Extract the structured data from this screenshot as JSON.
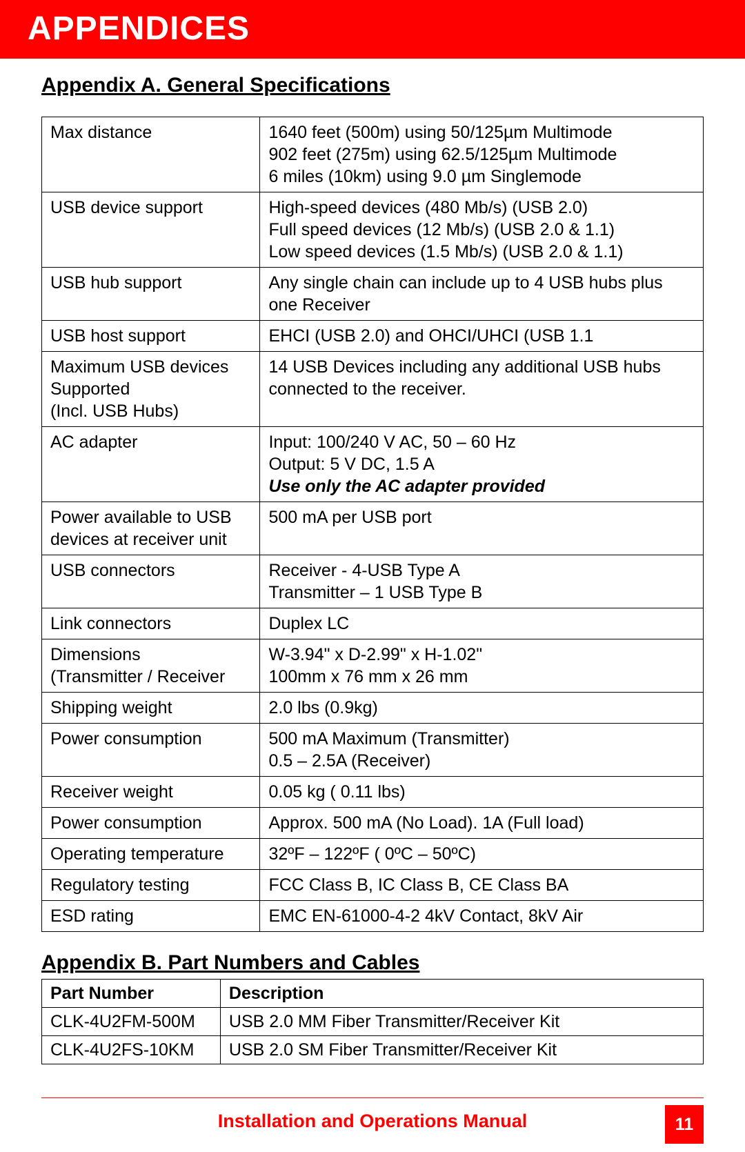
{
  "colors": {
    "brand_red": "#ff0000",
    "text": "#000000",
    "background": "#ffffff"
  },
  "typography": {
    "body_font": "Arial",
    "body_size_pt": 19,
    "heading_size_pt": 23,
    "banner_size_pt": 36
  },
  "banner": {
    "title": "APPENDICES"
  },
  "appendix_a": {
    "heading": "Appendix A.  General Specifications",
    "rows": [
      {
        "label": "Max distance",
        "value_lines": [
          "1640 feet (500m) using 50/125µm Multimode",
          "902 feet (275m) using 62.5/125µm Multimode",
          "6 miles (10km) using  9.0 µm Singlemode"
        ]
      },
      {
        "label": "USB device support",
        "value_lines": [
          "High-speed devices (480 Mb/s) (USB 2.0)",
          "Full speed devices (12 Mb/s) (USB 2.0 & 1.1)",
          "Low speed devices (1.5 Mb/s) (USB 2.0 & 1.1)"
        ]
      },
      {
        "label": "USB hub support",
        "value_lines": [
          "Any single chain can include up to 4 USB hubs plus one Receiver"
        ]
      },
      {
        "label": "USB host support",
        "value_lines": [
          "EHCI (USB 2.0) and OHCI/UHCI (USB 1.1"
        ]
      },
      {
        "label_lines": [
          "Maximum USB devices",
          "Supported",
          "(Incl. USB Hubs)"
        ],
        "value_lines": [
          "14 USB Devices including any additional USB hubs connected to the receiver."
        ]
      },
      {
        "label": "AC adapter",
        "value_lines": [
          "Input: 100/240 V AC, 50 – 60 Hz",
          "Output: 5 V DC, 1.5 A"
        ],
        "trailing_bold_italic": "Use only the AC adapter provided"
      },
      {
        "label_lines": [
          "Power available to USB",
          "devices at receiver unit"
        ],
        "value_lines": [
          "500 mA per USB port"
        ]
      },
      {
        "label": "USB connectors",
        "value_lines": [
          "Receiver - 4-USB Type A",
          "Transmitter – 1 USB Type B"
        ]
      },
      {
        "label": "Link connectors",
        "value_lines": [
          "Duplex LC"
        ]
      },
      {
        "label_lines": [
          "Dimensions",
          "(Transmitter / Receiver"
        ],
        "value_lines": [
          "W-3.94\" x D-2.99\" x H-1.02\"",
          "100mm x 76 mm x 26 mm"
        ]
      },
      {
        "label": "Shipping weight",
        "value_lines": [
          "2.0 lbs (0.9kg)"
        ]
      },
      {
        "label": "Power consumption",
        "value_lines": [
          "500 mA Maximum (Transmitter)",
          "0.5 – 2.5A (Receiver)"
        ]
      },
      {
        "label": "Receiver weight",
        "value_lines": [
          "0.05 kg ( 0.11 lbs)"
        ]
      },
      {
        "label": "Power consumption",
        "value_lines": [
          "Approx. 500 mA (No Load). 1A (Full load)"
        ]
      },
      {
        "label": "Operating temperature",
        "value_lines": [
          "32ºF – 122ºF  ( 0ºC – 50ºC)"
        ]
      },
      {
        "label": "Regulatory testing",
        "value_lines": [
          "FCC Class B, IC Class B, CE Class BA"
        ]
      },
      {
        "label": "ESD rating",
        "value_lines": [
          "EMC EN-61000-4-2 4kV Contact, 8kV Air"
        ]
      }
    ]
  },
  "appendix_b": {
    "heading": "Appendix B.  Part Numbers and Cables",
    "columns": [
      "Part Number",
      "Description"
    ],
    "rows": [
      [
        "CLK-4U2FM-500M",
        "USB 2.0 MM Fiber Transmitter/Receiver Kit"
      ],
      [
        "CLK-4U2FS-10KM",
        "USB 2.0 SM Fiber Transmitter/Receiver Kit"
      ]
    ]
  },
  "footer": {
    "title": "Installation and Operations Manual",
    "page_number": "11"
  }
}
